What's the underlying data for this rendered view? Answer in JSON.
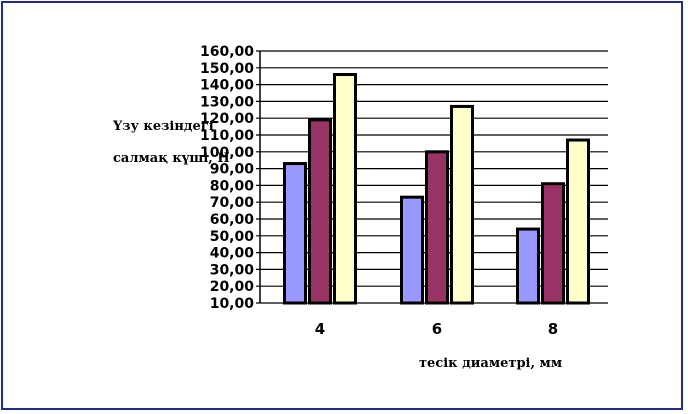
{
  "chart_data": {
    "type": "bar",
    "ylabel_lines": [
      "Үзу кезіндегі",
      "салмақ күші, Н"
    ],
    "xlabel": "тесік диаметрі, мм",
    "categories": [
      "4",
      "6",
      "8"
    ],
    "series": [
      {
        "values": [
          93,
          73,
          54
        ],
        "color": "#9999ff"
      },
      {
        "values": [
          119,
          100,
          81
        ],
        "color": "#993366"
      },
      {
        "values": [
          146,
          127,
          107
        ],
        "color": "#ffffcc"
      }
    ],
    "ylim": [
      10,
      160
    ],
    "yticks": [
      "10,00",
      "20,00",
      "30,00",
      "40,00",
      "50,00",
      "60,00",
      "70,00",
      "80,00",
      "90,00",
      "100,00",
      "110,00",
      "120,00",
      "130,00",
      "140,00",
      "150,00",
      "160,00"
    ],
    "grid": true,
    "legend": "none"
  }
}
